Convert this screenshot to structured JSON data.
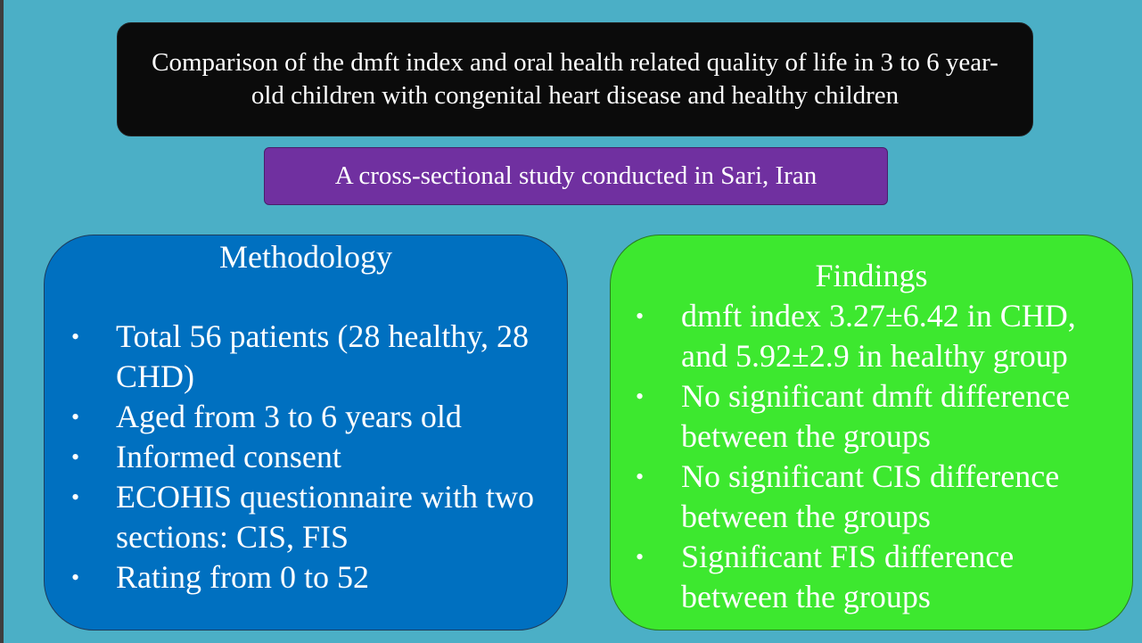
{
  "title": "Comparison of the dmft index and oral health related quality of life in 3 to 6 year-old children with congenital heart disease and healthy children",
  "subtitle": "A cross-sectional study conducted in Sari, Iran",
  "methodology": {
    "heading": "Methodology",
    "items": [
      "Total 56 patients (28 healthy, 28 CHD)",
      "Aged from 3 to 6 years old",
      "Informed consent",
      "ECOHIS questionnaire with two sections: CIS, FIS",
      "Rating from 0 to 52"
    ]
  },
  "findings": {
    "heading": "Findings",
    "items": [
      "dmft index 3.27±6.42 in CHD, and 5.92±2.9 in healthy group",
      "No significant dmft difference between the groups",
      "No significant CIS difference between the groups",
      "Significant FIS difference between the groups"
    ]
  },
  "bullet_char": "•",
  "colors": {
    "background": "#4bafc6",
    "title_box": "#0b0b0b",
    "subtitle_box": "#7030a0",
    "methodology_box": "#0070c0",
    "findings_box": "#3de82f",
    "text": "#ffffff"
  }
}
